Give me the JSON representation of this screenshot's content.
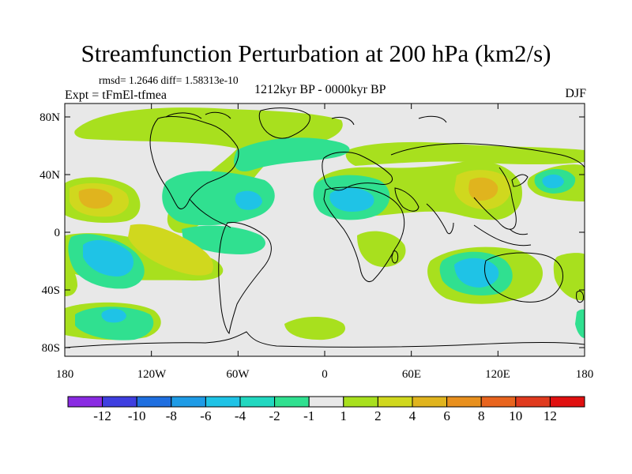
{
  "figure": {
    "title": "Streamfunction Perturbation at 200 hPa (km2/s)",
    "stats": "rmsd= 1.2646 diff= 1.58313e-10",
    "experiment": "Expt = tFmEl-tfmea",
    "period": "1212kyr BP - 0000kyr BP",
    "season": "DJF"
  },
  "map": {
    "lat_ticks": [
      "80N",
      "40N",
      "0",
      "40S",
      "80S"
    ],
    "lon_ticks": [
      "180",
      "120W",
      "60W",
      "0",
      "60E",
      "120E",
      "180"
    ],
    "background_color": "#e8e8e8",
    "coastline_color": "#000000"
  },
  "colorbar": {
    "levels": [
      "-12",
      "-10",
      "-8",
      "-6",
      "-4",
      "-2",
      "-1",
      "1",
      "2",
      "4",
      "6",
      "8",
      "10",
      "12"
    ],
    "colors": [
      "#8a2be2",
      "#3f3fe0",
      "#1f6fe0",
      "#1e9be6",
      "#1fc3e6",
      "#22d8c0",
      "#30e090",
      "#e8e8e8",
      "#a8e01e",
      "#d0d81e",
      "#e0b41e",
      "#e8901e",
      "#e8641e",
      "#e03a1e",
      "#e01010"
    ]
  }
}
